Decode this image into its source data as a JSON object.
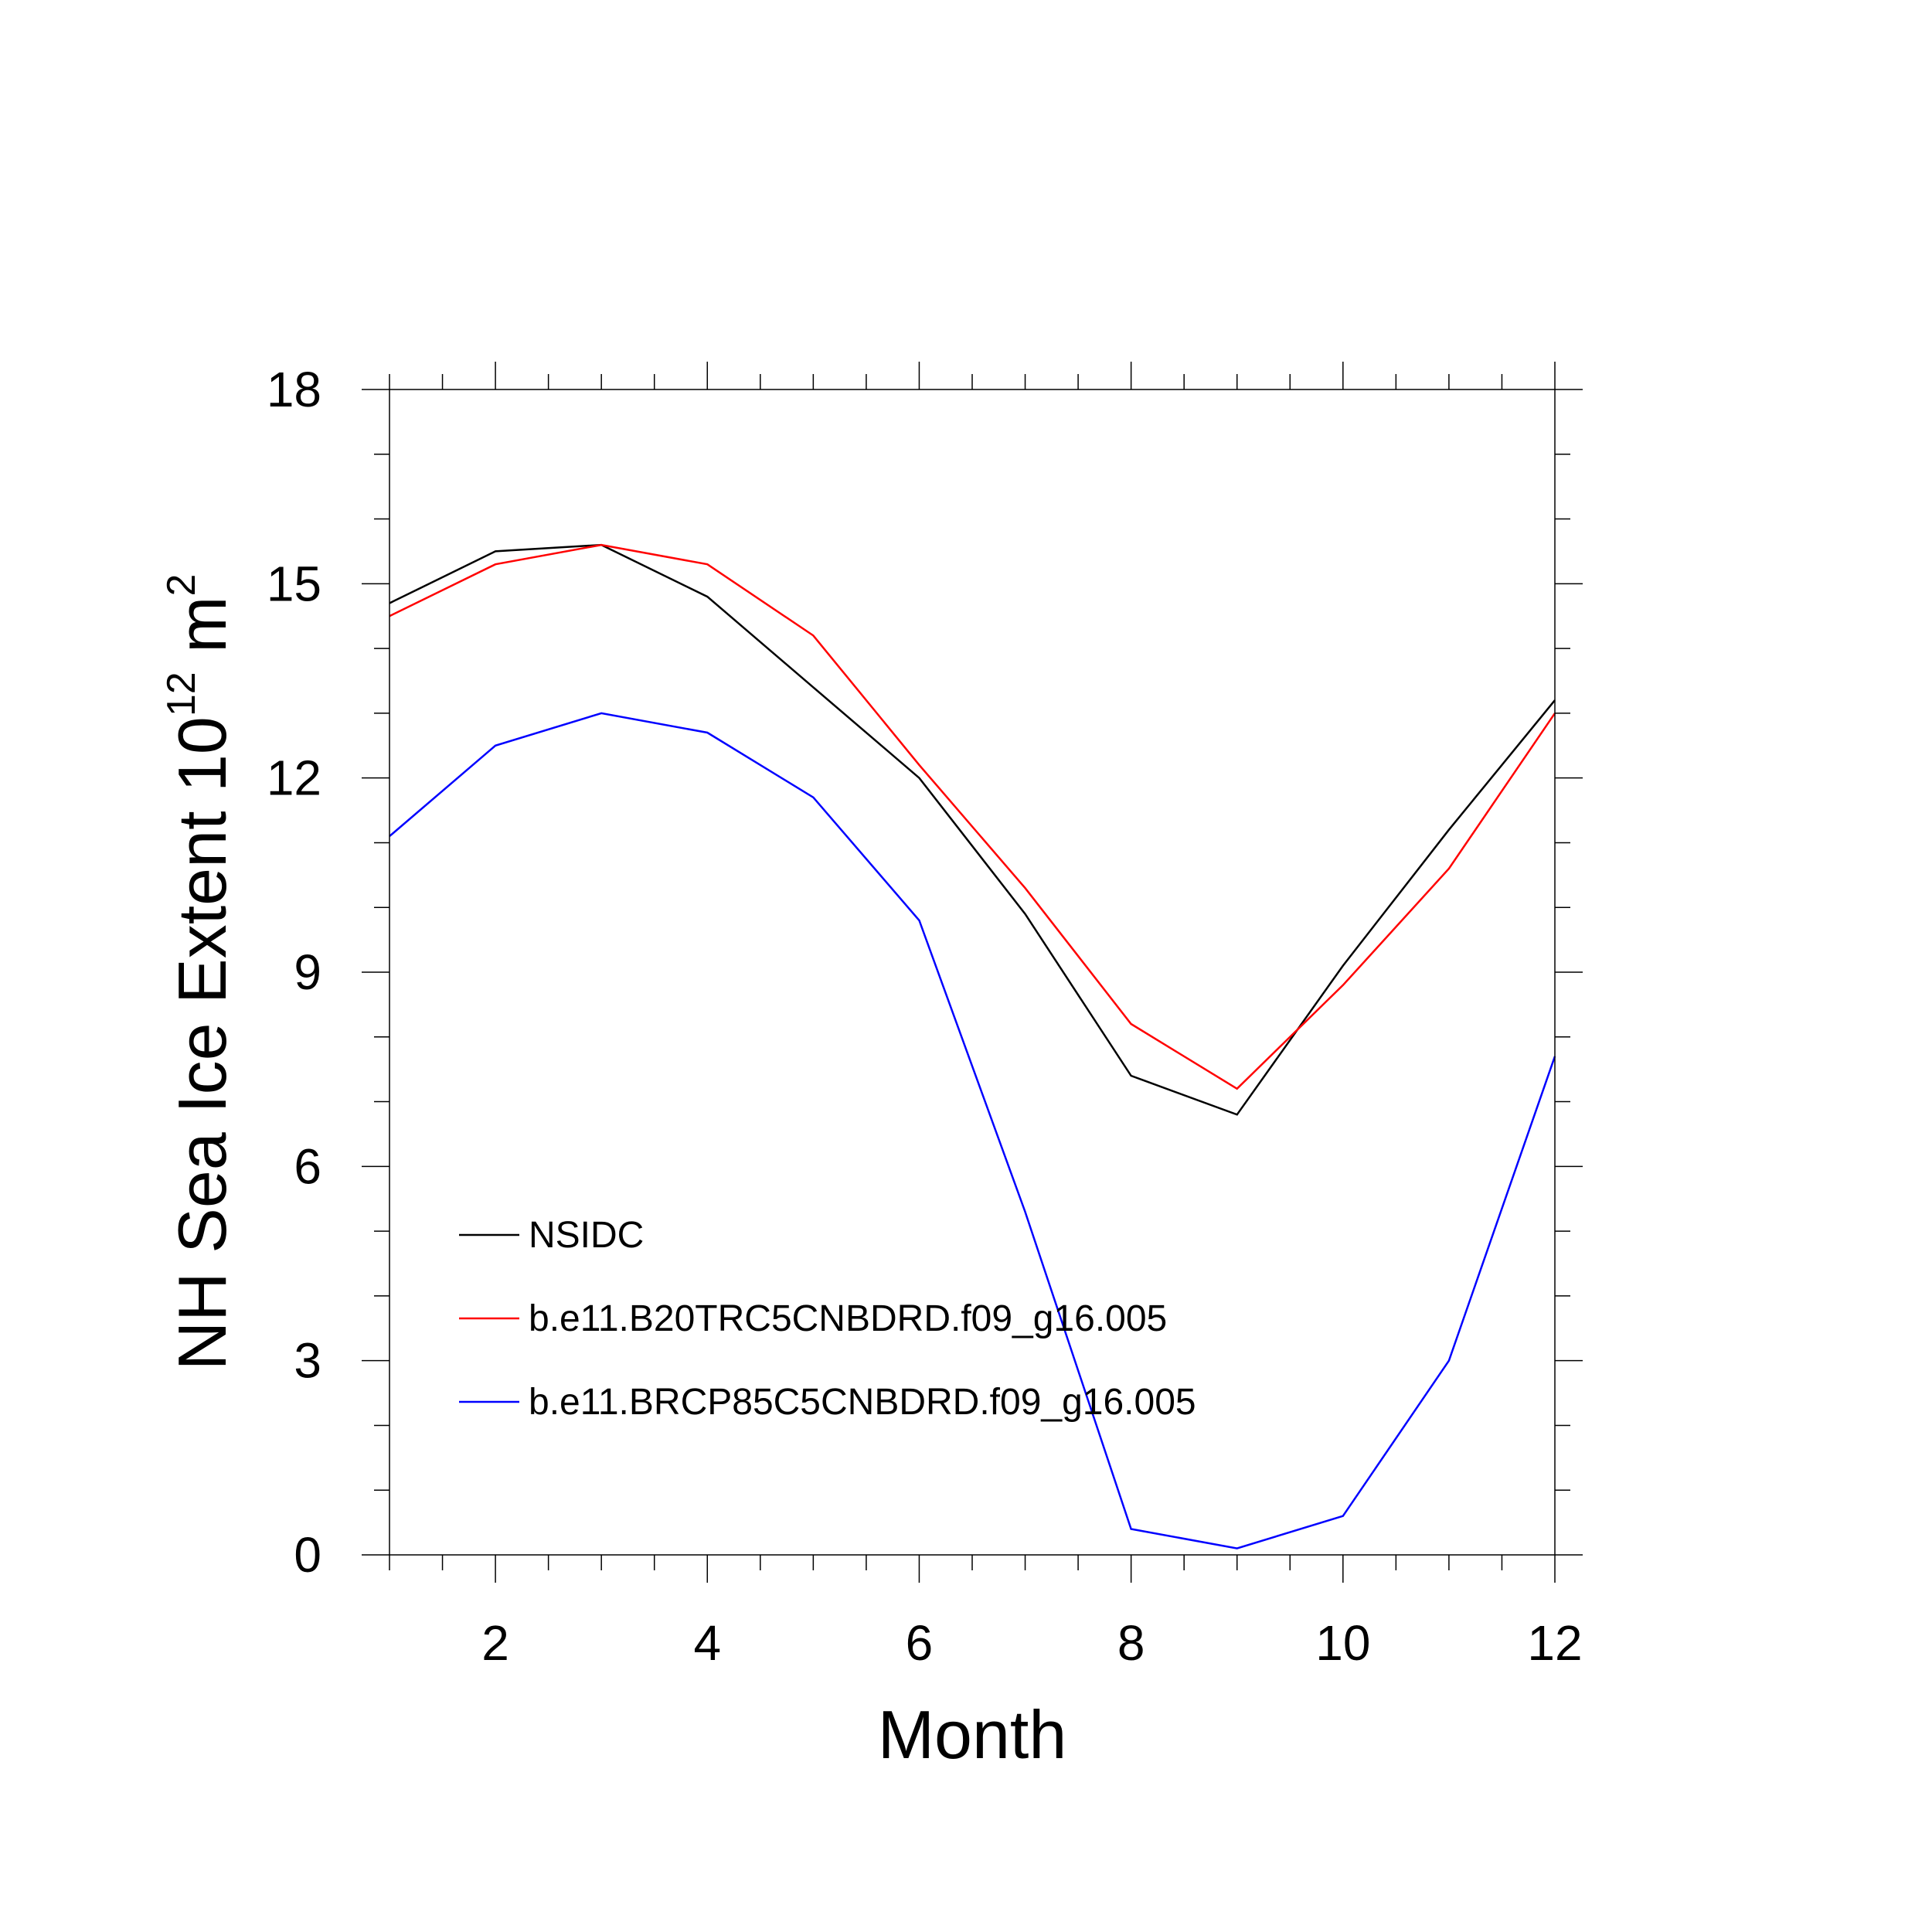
{
  "chart_data": {
    "type": "line",
    "title": "",
    "xlabel": "Month",
    "ylabel": {
      "base": "NH Sea Ice Extent 10",
      "exp1": "12",
      "mid": " m",
      "exp2": "2"
    },
    "xlim": [
      1,
      12
    ],
    "ylim": [
      0,
      18
    ],
    "x_ticks": [
      2,
      4,
      6,
      8,
      10,
      12
    ],
    "y_ticks": [
      0,
      3,
      6,
      9,
      12,
      15,
      18
    ],
    "grid": false,
    "legend_placement": "bottom-left",
    "x": [
      1,
      2,
      3,
      4,
      5,
      6,
      7,
      8,
      9,
      10,
      11,
      12
    ],
    "series": [
      {
        "name": "NSIDC",
        "color": "#000000",
        "values": [
          14.7,
          15.5,
          15.6,
          14.8,
          13.4,
          12.0,
          9.9,
          7.4,
          6.8,
          9.1,
          11.2,
          13.2
        ]
      },
      {
        "name": "b.e11.B20TRC5CNBDRD.f09_g16.005",
        "color": "#ff0000",
        "values": [
          14.5,
          15.3,
          15.6,
          15.3,
          14.2,
          12.2,
          10.3,
          8.2,
          7.2,
          8.8,
          10.6,
          13.0
        ]
      },
      {
        "name": "b.e11.BRCP85C5CNBDRD.f09_g16.005",
        "color": "#0000ff",
        "values": [
          11.1,
          12.5,
          13.0,
          12.7,
          11.7,
          9.8,
          5.3,
          0.4,
          0.1,
          0.6,
          3.0,
          7.7
        ]
      }
    ]
  }
}
